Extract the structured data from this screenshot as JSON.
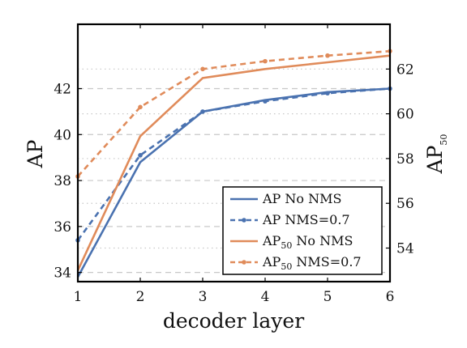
{
  "chart_data": {
    "type": "line",
    "xlabel": "decoder layer",
    "ylabel_left": "AP",
    "ylabel_right": "AP50",
    "x": [
      1,
      2,
      3,
      4,
      5,
      6
    ],
    "xlim": [
      1,
      6
    ],
    "ylim_left": [
      33.6,
      44.8
    ],
    "ylim_right": [
      52.5,
      64.0
    ],
    "yticks_left": [
      34,
      36,
      38,
      40,
      42
    ],
    "yticks_right": [
      54,
      56,
      58,
      60,
      62
    ],
    "grid": true,
    "legend_position": "lower-right",
    "series": [
      {
        "name": "AP No NMS",
        "axis": "left",
        "style": "solid",
        "color": "#4a72b0",
        "values": [
          33.8,
          38.8,
          41.0,
          41.5,
          41.85,
          42.0
        ]
      },
      {
        "name": "AP NMS=0.7",
        "axis": "left",
        "style": "dashed",
        "color": "#4a72b0",
        "values": [
          35.4,
          39.1,
          41.0,
          41.45,
          41.8,
          42.0
        ]
      },
      {
        "name": "AP50 No NMS",
        "axis": "right",
        "style": "solid",
        "color": "#e08b5a",
        "values": [
          53.0,
          59.0,
          61.6,
          62.0,
          62.3,
          62.6
        ]
      },
      {
        "name": "AP50 NMS=0.7",
        "axis": "right",
        "style": "dashed",
        "color": "#e08b5a",
        "values": [
          57.2,
          60.3,
          62.0,
          62.35,
          62.6,
          62.8
        ]
      }
    ],
    "legend": [
      {
        "main": "AP",
        "sub": "",
        "rest": " No NMS"
      },
      {
        "main": "AP",
        "sub": "",
        "rest": " NMS=0.7"
      },
      {
        "main": "AP",
        "sub": "50",
        "rest": " No NMS"
      },
      {
        "main": "AP",
        "sub": "50",
        "rest": " NMS=0.7"
      }
    ]
  }
}
